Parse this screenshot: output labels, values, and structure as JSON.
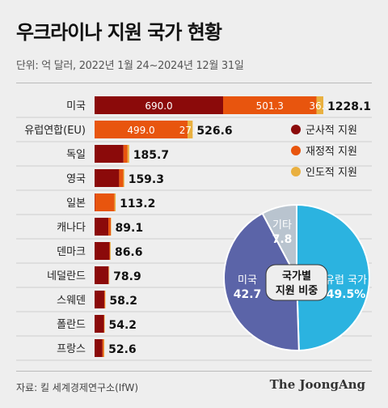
{
  "title": "우크라이나 지원 국가 현황",
  "unit": "단위: 억 달러, 2022년 1월 24~2024년 12월 31일",
  "source": "자료: 킬 세계경제연구소(IfW)",
  "brand": "The JoongAng",
  "colors": {
    "military": "#8b0a0a",
    "financial": "#e8550e",
    "humanitarian": "#e9b040",
    "pie_eu": "#2bb3e0",
    "pie_us": "#5b64a8",
    "pie_other": "#b9c4cf"
  },
  "chart_data": [
    {
      "type": "bar",
      "stacked": true,
      "orientation": "horizontal",
      "categories": [
        "미국",
        "유럽연합(EU)",
        "독일",
        "영국",
        "일본",
        "캐나다",
        "덴마크",
        "네덜란드",
        "스웨덴",
        "폴란드",
        "프랑스"
      ],
      "totals": [
        "1228.1",
        "526.6",
        "185.7",
        "159.3",
        "113.2",
        "89.1",
        "86.6",
        "78.9",
        "58.2",
        "54.2",
        "52.6"
      ],
      "series": [
        {
          "name": "군사적 지원",
          "values": [
            690.0,
            0,
            155,
            132,
            2,
            74,
            80,
            75,
            52,
            50,
            42
          ]
        },
        {
          "name": "재정적 지원",
          "values": [
            501.3,
            499.0,
            22,
            22,
            105,
            13,
            3,
            2,
            4,
            2,
            7
          ]
        },
        {
          "name": "인도적 지원",
          "values": [
            36.8,
            27.6,
            8.7,
            5.3,
            6.2,
            2.1,
            3.6,
            1.9,
            2.2,
            2.2,
            3.6
          ]
        }
      ],
      "value_labels": [
        [
          "690.0",
          "501.3",
          "36.8"
        ],
        [
          "",
          "499.0",
          "27.6"
        ]
      ],
      "legend": [
        "군사적 지원",
        "재정적 지원",
        "인도적 지원"
      ],
      "legend_position": "right"
    },
    {
      "type": "pie",
      "title": "국가별 지원 비중",
      "slices": [
        {
          "label": "유럽 국가",
          "value_text": "49.5%",
          "value": 49.5
        },
        {
          "label": "미국",
          "value_text": "42.7",
          "value": 42.7
        },
        {
          "label": "기타",
          "value_text": "7.8",
          "value": 7.8
        }
      ]
    }
  ]
}
